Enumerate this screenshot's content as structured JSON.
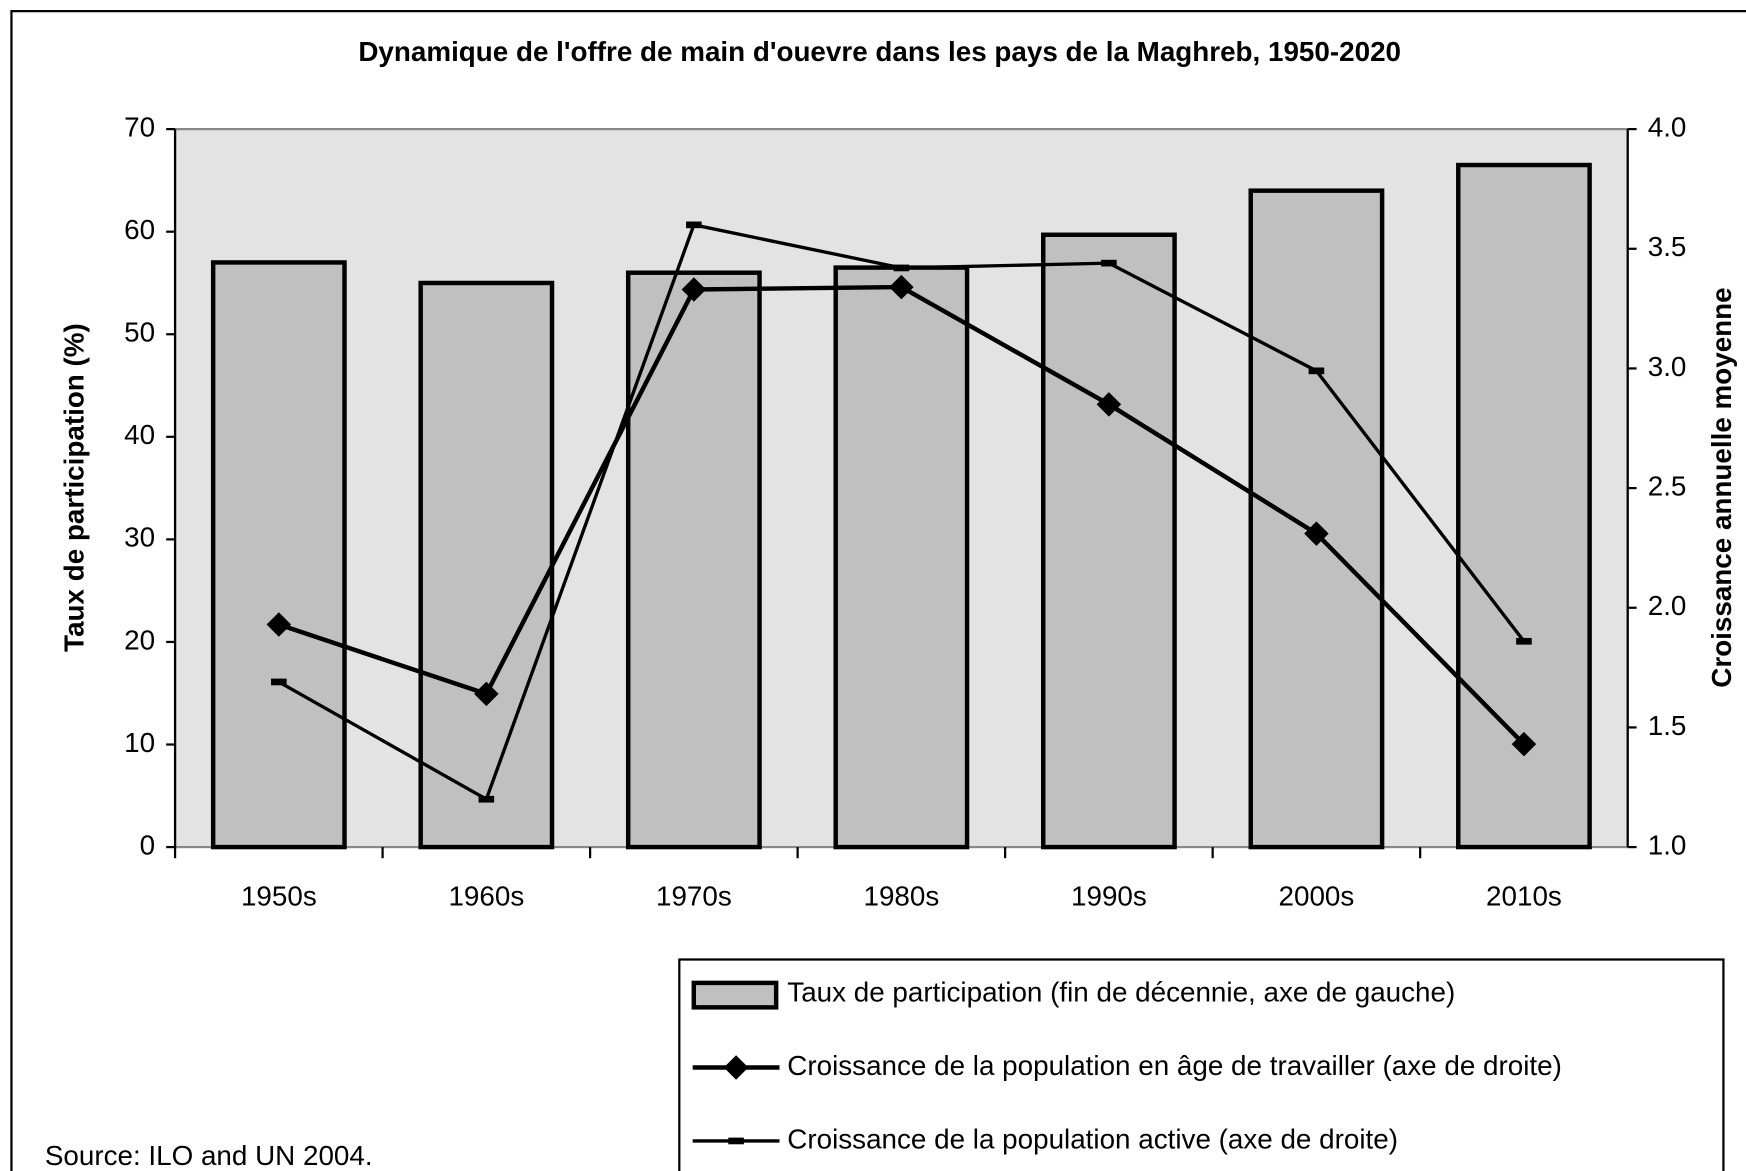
{
  "chart_data": {
    "type": "bar_line",
    "title": "Dynamique de l'offre de main d'ouevre dans les pays de la Maghreb, 1950-2020",
    "ylabel": "Taux de participation (%)",
    "y2label": "Croissance annuelle moyenne",
    "source": "Source: ILO and UN 2004.",
    "categories": [
      "1950s",
      "1960s",
      "1970s",
      "1980s",
      "1990s",
      "2000s",
      "2010s"
    ],
    "series": [
      {
        "name": "Taux de participation (fin de décennie, axe de gauche)",
        "type": "bar",
        "axis": "y",
        "color": "#c0c0c0",
        "values": [
          57,
          55,
          56,
          56.5,
          59.7,
          64,
          66.5
        ]
      },
      {
        "name": "Croissance de la population en âge de travailler (axe de droite)",
        "type": "line",
        "axis": "y2",
        "marker": "diamond",
        "color": "#000000",
        "values": [
          1.93,
          1.64,
          3.33,
          3.34,
          2.85,
          2.31,
          1.43
        ]
      },
      {
        "name": "Croissance de la population active (axe de droite)",
        "type": "line",
        "axis": "y2",
        "marker": "dash",
        "color": "#000000",
        "values": [
          1.69,
          1.2,
          3.6,
          3.42,
          3.44,
          2.99,
          1.86
        ]
      }
    ],
    "ylim": [
      0,
      70
    ],
    "yticks": [
      0,
      10,
      20,
      30,
      40,
      50,
      60,
      70
    ],
    "y2lim": [
      1.0,
      4.0
    ],
    "y2ticks": [
      {
        "value": 1.0,
        "label": "1.0"
      },
      1.5,
      {
        "value": 2.0,
        "label": "2.0"
      },
      2.5,
      {
        "value": 3.0,
        "label": "3.0"
      },
      3.5,
      {
        "value": 4.0,
        "label": "4.0"
      }
    ]
  }
}
